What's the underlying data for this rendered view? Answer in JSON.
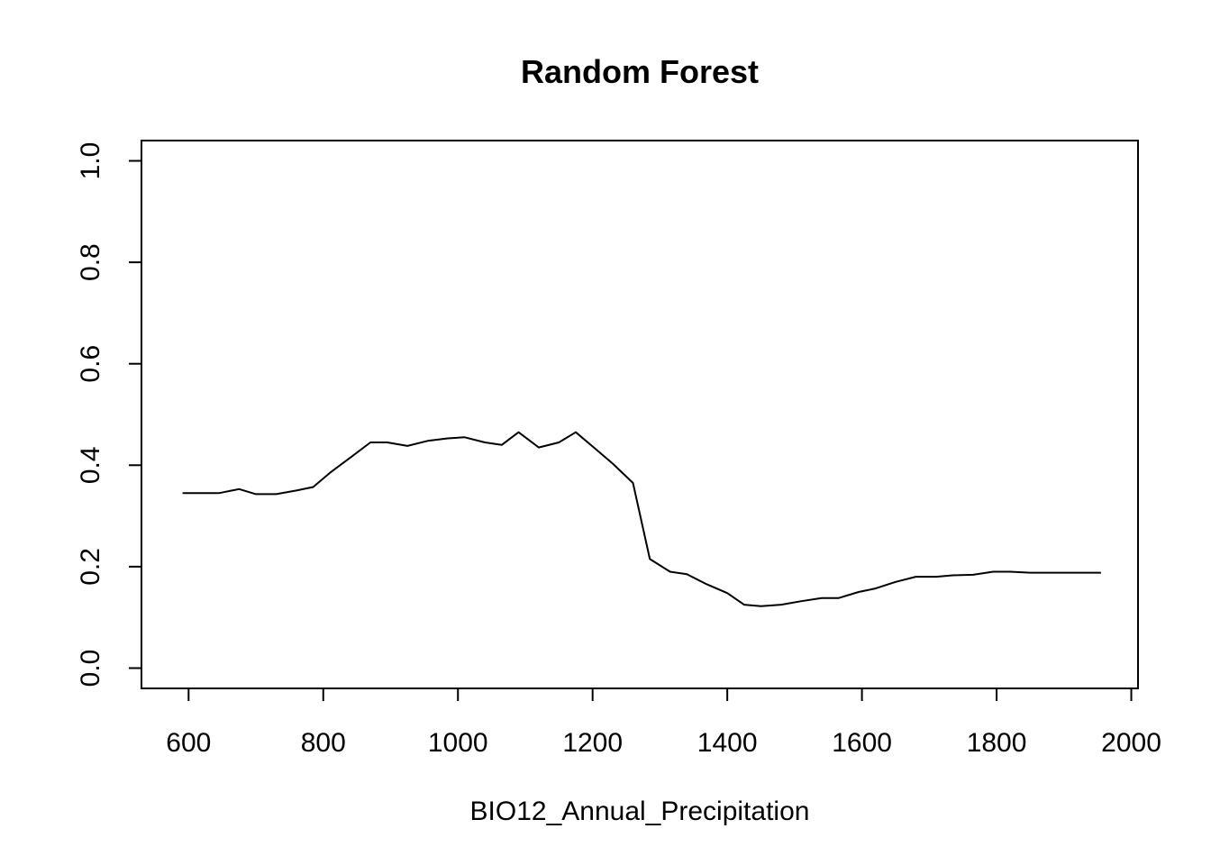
{
  "chart_data": {
    "type": "line",
    "title": "Random Forest",
    "xlabel": "BIO12_Annual_Precipitation",
    "ylabel": "",
    "xlim": [
      530,
      2010
    ],
    "ylim": [
      -0.04,
      1.04
    ],
    "x_ticks": [
      600,
      800,
      1000,
      1200,
      1400,
      1600,
      1800,
      2000
    ],
    "x_tick_labels": [
      "600",
      "800",
      "1000",
      "1200",
      "1400",
      "1600",
      "1800",
      "2000"
    ],
    "y_ticks": [
      0.0,
      0.2,
      0.4,
      0.6,
      0.8,
      1.0
    ],
    "y_tick_labels": [
      "0.0",
      "0.2",
      "0.4",
      "0.6",
      "0.8",
      "1.0"
    ],
    "grid": false,
    "line_color": "#000000",
    "series": [
      {
        "x": [
          591,
          620,
          645,
          675,
          700,
          730,
          760,
          785,
          810,
          840,
          870,
          895,
          925,
          955,
          985,
          1010,
          1040,
          1065,
          1090,
          1120,
          1150,
          1175,
          1200,
          1230,
          1260,
          1285,
          1315,
          1340,
          1370,
          1400,
          1425,
          1450,
          1480,
          1510,
          1540,
          1565,
          1595,
          1620,
          1650,
          1680,
          1710,
          1735,
          1765,
          1795,
          1820,
          1850,
          1880,
          1905,
          1935,
          1955
        ],
        "y": [
          0.345,
          0.345,
          0.345,
          0.353,
          0.343,
          0.343,
          0.35,
          0.357,
          0.385,
          0.415,
          0.445,
          0.445,
          0.438,
          0.448,
          0.453,
          0.455,
          0.445,
          0.44,
          0.465,
          0.435,
          0.445,
          0.465,
          0.437,
          0.403,
          0.365,
          0.215,
          0.19,
          0.185,
          0.165,
          0.148,
          0.125,
          0.122,
          0.125,
          0.132,
          0.138,
          0.138,
          0.15,
          0.157,
          0.17,
          0.18,
          0.18,
          0.183,
          0.184,
          0.19,
          0.19,
          0.188,
          0.188,
          0.188,
          0.188,
          0.188
        ]
      }
    ]
  }
}
